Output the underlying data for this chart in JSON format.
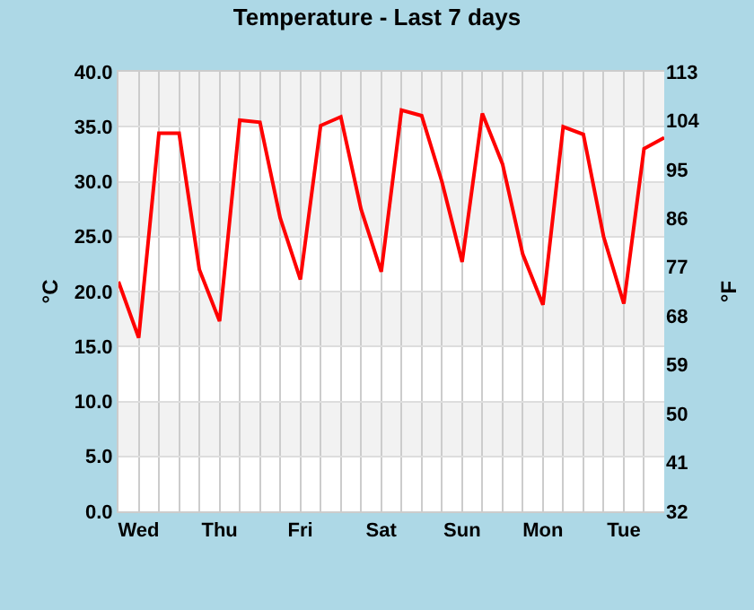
{
  "chart_data": {
    "type": "line",
    "title": "Temperature - Last 7 days",
    "ylabel": "°C",
    "y2label": "°F",
    "categories": [
      null,
      "Wed",
      null,
      null,
      null,
      "Thu",
      null,
      null,
      null,
      "Fri",
      null,
      null,
      null,
      "Sat",
      null,
      null,
      null,
      "Sun",
      null,
      null,
      null,
      "Mon",
      null,
      null,
      null,
      "Tue",
      null,
      null
    ],
    "series": [
      {
        "color": "#ff0000",
        "values": [
          20.9,
          15.8,
          34.4,
          34.4,
          22.0,
          17.3,
          35.6,
          35.4,
          26.7,
          21.1,
          35.1,
          35.9,
          27.5,
          21.8,
          36.5,
          36.0,
          30.0,
          22.7,
          36.2,
          31.6,
          23.4,
          18.8,
          35.0,
          34.3,
          25.0,
          18.9,
          33.0,
          34.0
        ]
      }
    ],
    "ylim": [
      0,
      40
    ],
    "yticks": [
      {
        "value": 0,
        "label": "0.0"
      },
      {
        "value": 5,
        "label": "5.0"
      },
      {
        "value": 10,
        "label": "10.0"
      },
      {
        "value": 15,
        "label": "15.0"
      },
      {
        "value": 20,
        "label": "20.0"
      },
      {
        "value": 25,
        "label": "25.0"
      },
      {
        "value": 30,
        "label": "30.0"
      },
      {
        "value": 35,
        "label": "35.0"
      },
      {
        "value": 40,
        "label": "40.0"
      }
    ],
    "y2lim": [
      32,
      113
    ],
    "y2ticks": [
      32,
      41,
      50,
      59,
      68,
      77,
      86,
      95,
      104,
      113
    ],
    "grid": true,
    "marker": "none",
    "line_style": "solid",
    "legend": false
  }
}
